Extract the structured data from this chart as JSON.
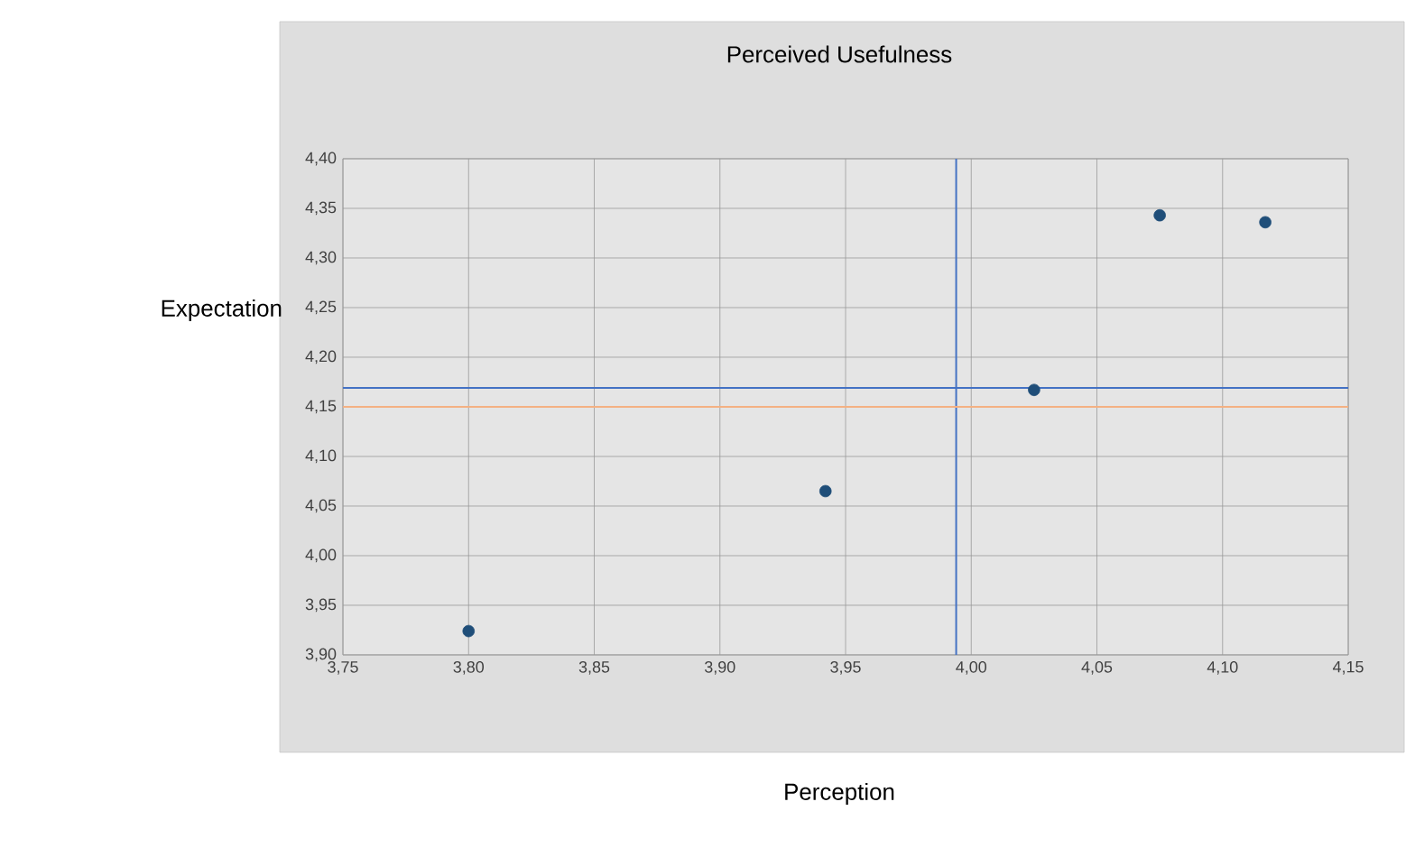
{
  "chart_data": {
    "type": "scatter",
    "title": "Perceived Usefulness",
    "xlabel": "Perception",
    "ylabel": "Expectation",
    "x": [
      3.8,
      3.942,
      4.025,
      4.075,
      4.117
    ],
    "series": [
      {
        "color": "#1f4e79",
        "values": [
          3.924,
          4.065,
          4.167,
          4.343,
          4.336
        ]
      }
    ],
    "xlim": [
      3.75,
      4.15
    ],
    "ylim": [
      3.9,
      4.4
    ],
    "xticks": [
      {
        "value": 3.75,
        "label": "3,75"
      },
      {
        "value": 3.8,
        "label": "3,80"
      },
      {
        "value": 3.85,
        "label": "3,85"
      },
      {
        "value": 3.9,
        "label": "3,90"
      },
      {
        "value": 3.95,
        "label": "3,95"
      },
      {
        "value": 4.0,
        "label": "4,00"
      },
      {
        "value": 4.05,
        "label": "4,05"
      },
      {
        "value": 4.1,
        "label": "4,10"
      },
      {
        "value": 4.15,
        "label": "4,15"
      }
    ],
    "yticks": [
      {
        "value": 3.9,
        "label": "3,90"
      },
      {
        "value": 3.95,
        "label": "3,95"
      },
      {
        "value": 4.0,
        "label": "4,00"
      },
      {
        "value": 4.05,
        "label": "4,05"
      },
      {
        "value": 4.1,
        "label": "4,10"
      },
      {
        "value": 4.15,
        "label": "4,15"
      },
      {
        "value": 4.2,
        "label": "4,20"
      },
      {
        "value": 4.25,
        "label": "4,25"
      },
      {
        "value": 4.3,
        "label": "4,30"
      },
      {
        "value": 4.35,
        "label": "4,35"
      },
      {
        "value": 4.4,
        "label": "4,40"
      }
    ],
    "ref_lines": [
      {
        "axis": "x",
        "value": 3.994,
        "label": null,
        "color": "#4472c4"
      },
      {
        "axis": "y",
        "value": 4.169,
        "label": null,
        "color": "#4472c4"
      },
      {
        "axis": "y",
        "value": 4.15,
        "label": null,
        "color": "#f4b183"
      }
    ],
    "grid": true
  }
}
